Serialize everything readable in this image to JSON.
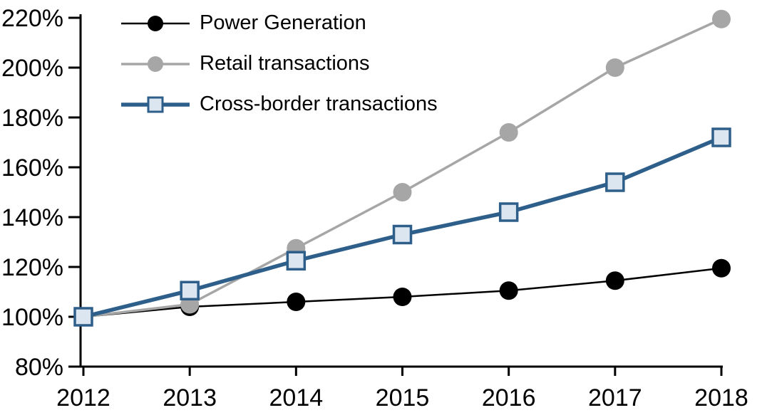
{
  "chart_data": {
    "type": "line",
    "title": "",
    "xlabel": "",
    "ylabel": "",
    "x": [
      2012,
      2013,
      2014,
      2015,
      2016,
      2017,
      2018
    ],
    "x_tick_labels": [
      "2012",
      "2013",
      "2014",
      "2015",
      "2016",
      "2017",
      "2018"
    ],
    "ylim": [
      80,
      220
    ],
    "ytick_step": 20,
    "y_tick_labels": [
      "80%",
      "100%",
      "120%",
      "140%",
      "160%",
      "180%",
      "200%",
      "220%"
    ],
    "grid": false,
    "legend_position": "top-left",
    "series": [
      {
        "name": "Power Generation",
        "color": "#000000",
        "marker": "circle",
        "marker_fill": "#000000",
        "line_width": 2.5,
        "values": [
          100,
          104,
          106,
          108,
          110.5,
          114.5,
          119.5
        ]
      },
      {
        "name": "Retail transactions",
        "color": "#a6a6a6",
        "marker": "circle",
        "marker_fill": "#a6a6a6",
        "line_width": 3.5,
        "values": [
          100,
          105,
          127.5,
          150,
          174,
          200,
          219.5
        ]
      },
      {
        "name": "Cross-border transactions",
        "color": "#2e5f8a",
        "marker": "square",
        "marker_fill": "#dce6f1",
        "line_width": 5.5,
        "values": [
          100,
          110.5,
          122.5,
          133,
          142,
          154,
          172
        ]
      }
    ],
    "axis_color": "#000000"
  }
}
